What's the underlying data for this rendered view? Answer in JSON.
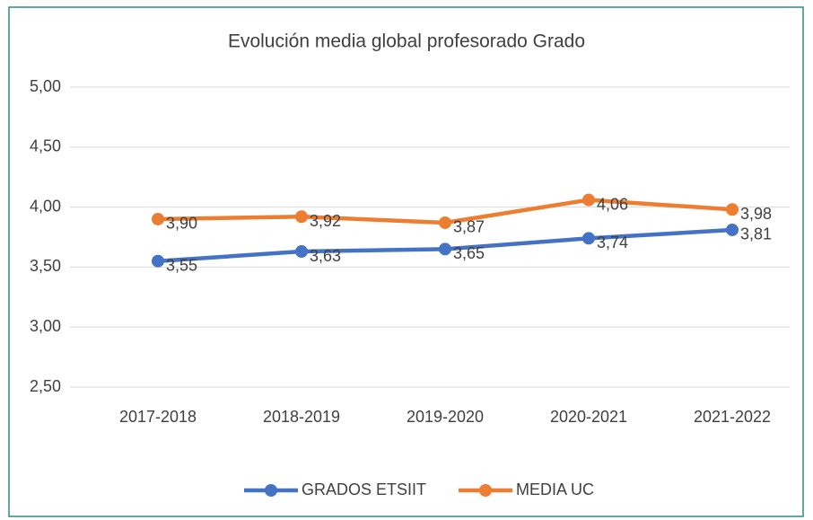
{
  "chart_data": {
    "type": "line",
    "title": "Evolución media global profesorado Grado",
    "categories": [
      "2017-2018",
      "2018-2019",
      "2019-2020",
      "2020-2021",
      "2021-2022"
    ],
    "series": [
      {
        "name": "GRADOS ETSIIT",
        "color": "#4472c4",
        "values": [
          3.55,
          3.63,
          3.65,
          3.74,
          3.81
        ],
        "value_labels": [
          "3,55",
          "3,63",
          "3,65",
          "3,74",
          "3,81"
        ]
      },
      {
        "name": "MEDIA UC",
        "color": "#ed7d31",
        "values": [
          3.9,
          3.92,
          3.87,
          4.06,
          3.98
        ],
        "value_labels": [
          "3,90",
          "3,92",
          "3,87",
          "4,06",
          "3,98"
        ]
      }
    ],
    "ylim": [
      2.5,
      5.0
    ],
    "yticks": [
      {
        "value": 2.5,
        "label": "2,50"
      },
      {
        "value": 3.0,
        "label": "3,00"
      },
      {
        "value": 3.5,
        "label": "3,50"
      },
      {
        "value": 4.0,
        "label": "4,00"
      },
      {
        "value": 4.5,
        "label": "4,50"
      },
      {
        "value": 5.0,
        "label": "5,00"
      }
    ],
    "grid": true,
    "legend": "bottom"
  }
}
